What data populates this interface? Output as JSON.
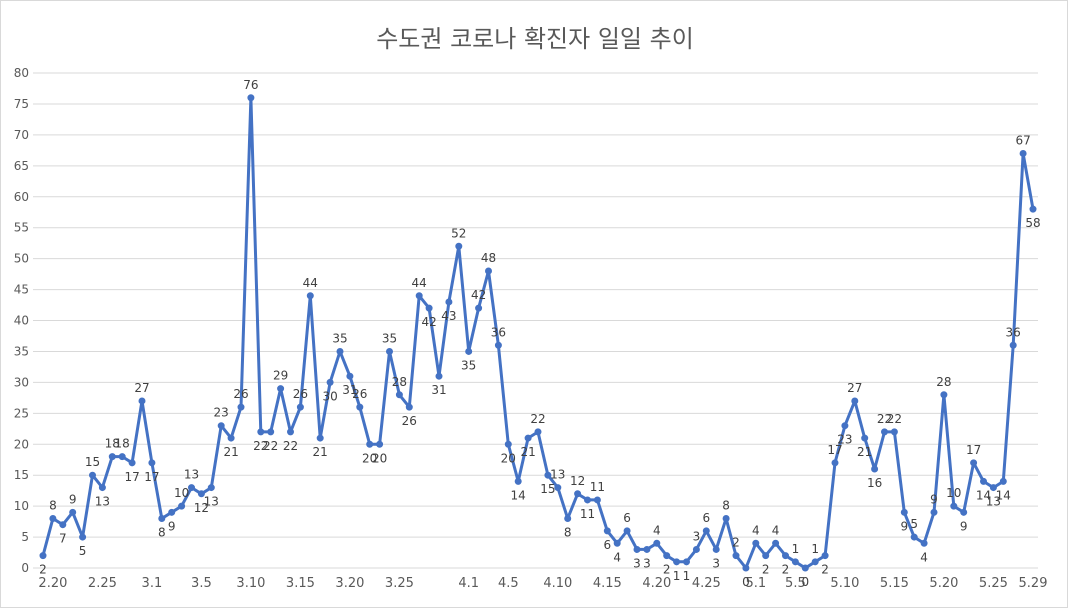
{
  "chart_data": {
    "type": "line",
    "title": "수도권 코로나 확진자 일일 추이",
    "xlabel": "",
    "ylabel": "",
    "ylim": [
      0,
      80
    ],
    "yticks": [
      0,
      5,
      10,
      15,
      20,
      25,
      30,
      35,
      40,
      45,
      50,
      55,
      60,
      65,
      70,
      75,
      80
    ],
    "grid": true,
    "legend": "none",
    "line_color": "#4472c4",
    "series": [
      {
        "values": [
          2,
          8,
          7,
          9,
          5,
          15,
          13,
          18,
          18,
          17,
          27,
          17,
          8,
          9,
          10,
          13,
          12,
          13,
          23,
          21,
          26,
          76,
          22,
          22,
          29,
          22,
          26,
          44,
          21,
          30,
          35,
          31,
          26,
          20,
          20,
          35,
          28,
          26,
          44,
          42,
          31,
          43,
          52,
          35,
          42,
          48,
          36,
          20,
          14,
          21,
          22,
          15,
          13,
          8,
          12,
          11,
          11,
          6,
          4,
          6,
          3,
          3,
          4,
          2,
          1,
          1,
          3,
          6,
          3,
          8,
          2,
          0,
          4,
          2,
          4,
          2,
          1,
          0,
          1,
          2,
          17,
          23,
          27,
          21,
          16,
          22,
          22,
          9,
          5,
          4,
          9,
          28,
          10,
          9,
          17,
          14,
          13,
          14,
          36,
          67,
          58
        ]
      }
    ],
    "x_tick_labels": [
      {
        "index": 1,
        "label": "2.20"
      },
      {
        "index": 6,
        "label": "2.25"
      },
      {
        "index": 11,
        "label": "3.1"
      },
      {
        "index": 16,
        "label": "3.5"
      },
      {
        "index": 21,
        "label": "3.10"
      },
      {
        "index": 26,
        "label": "3.15"
      },
      {
        "index": 31,
        "label": "3.20"
      },
      {
        "index": 36,
        "label": "3.25"
      },
      {
        "index": 43,
        "label": "4.1"
      },
      {
        "index": 47,
        "label": "4.5"
      },
      {
        "index": 52,
        "label": "4.10"
      },
      {
        "index": 57,
        "label": "4.15"
      },
      {
        "index": 62,
        "label": "4.20"
      },
      {
        "index": 67,
        "label": "4.25"
      },
      {
        "index": 72,
        "label": "5.1"
      },
      {
        "index": 76,
        "label": "5.5"
      },
      {
        "index": 81,
        "label": "5.10"
      },
      {
        "index": 86,
        "label": "5.15"
      },
      {
        "index": 91,
        "label": "5.20"
      },
      {
        "index": 96,
        "label": "5.25"
      },
      {
        "index": 100,
        "label": "5.29"
      }
    ]
  }
}
